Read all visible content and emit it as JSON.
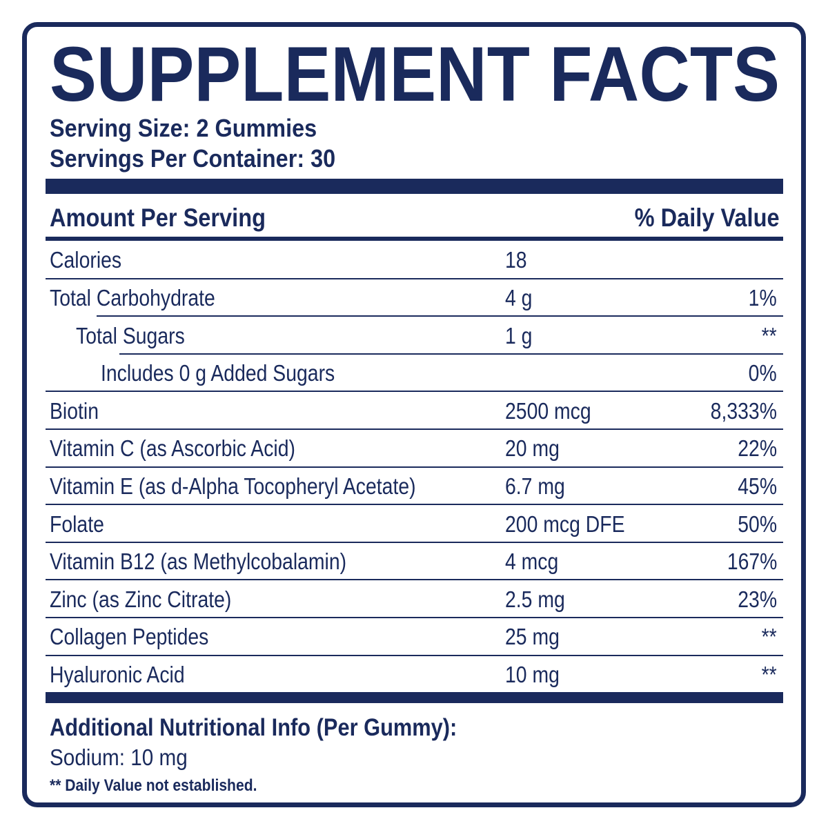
{
  "title": "SUPPLEMENT FACTS",
  "serving_size": "Serving Size: 2 Gummies",
  "servings_per_container": "Servings Per Container: 30",
  "table": {
    "header": [
      "Amount Per Serving",
      "% Daily Value"
    ],
    "rows": [
      [
        "Calories",
        "18",
        ""
      ],
      [
        "Total Carbohydrate",
        "4 g",
        "1%"
      ],
      [
        "Total Sugars",
        "1 g",
        "**"
      ],
      [
        "Includes 0 g Added Sugars",
        "",
        "0%"
      ],
      [
        "Biotin",
        "2500 mcg",
        "8,333%"
      ],
      [
        "Vitamin C (as Ascorbic Acid)",
        "20 mg",
        "22%"
      ],
      [
        "Vitamin E (as d-Alpha Tocopheryl Acetate)",
        "6.7 mg",
        "45%"
      ],
      [
        "Folate",
        "200 mcg DFE",
        "50%"
      ],
      [
        "Vitamin B12 (as Methylcobalamin)",
        "4 mcg",
        "167%"
      ],
      [
        "Zinc (as Zinc Citrate)",
        "2.5 mg",
        "23%"
      ],
      [
        "Collagen Peptides",
        "25 mg",
        "**"
      ],
      [
        "Hyaluronic Acid",
        "10 mg",
        "**"
      ]
    ]
  },
  "additional": {
    "title": "Additional Nutritional Info (Per Gummy):",
    "sodium": "Sodium: 10 mg"
  },
  "footnote": "** Daily Value not established."
}
